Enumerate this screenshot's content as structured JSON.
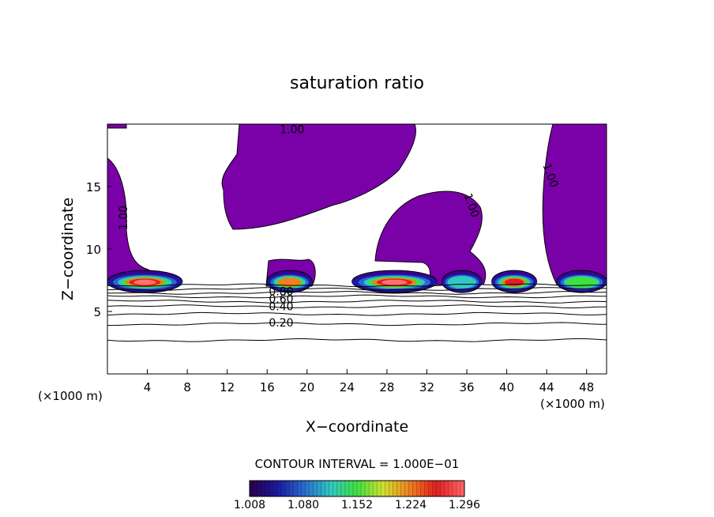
{
  "chart_data": {
    "type": "heatmap",
    "title": "saturation ratio",
    "xlabel": "X−coordinate",
    "ylabel": "Z−coordinate",
    "x_unit_left": "(×1000 m)",
    "x_unit_right": "(×1000 m)",
    "xlim": [
      0,
      50
    ],
    "ylim": [
      0,
      20
    ],
    "x_ticks": [
      4,
      8,
      12,
      16,
      20,
      24,
      28,
      32,
      36,
      40,
      44,
      48
    ],
    "y_ticks": [
      5,
      10,
      15
    ],
    "contour_interval_text": "CONTOUR INTERVAL = 1.000E−01",
    "colorbar": {
      "labels": [
        "1.008",
        "1.080",
        "1.152",
        "1.224",
        "1.296"
      ],
      "colors": [
        "#2a0050",
        "#1a1aa0",
        "#2a6ad0",
        "#30c8c0",
        "#40e040",
        "#d0e030",
        "#f08020",
        "#e02020",
        "#ff6060"
      ]
    },
    "contour_labels": [
      {
        "text": "1.00",
        "x": 18.5,
        "y": 19.6
      },
      {
        "text": "1.00",
        "x": 1.6,
        "y": 12.5
      },
      {
        "text": "1.00",
        "x": 36.5,
        "y": 13.5
      },
      {
        "text": "1.00",
        "x": 44.4,
        "y": 15.9
      },
      {
        "text": "0.80",
        "x": 17.4,
        "y": 6.6
      },
      {
        "text": "0.60",
        "x": 17.4,
        "y": 6.0
      },
      {
        "text": "0.40",
        "x": 17.4,
        "y": 5.4
      },
      {
        "text": "0.20",
        "x": 17.4,
        "y": 4.1
      }
    ],
    "background_contours": [
      {
        "value": 0.1,
        "y": 2.7
      },
      {
        "value": 0.2,
        "y": 4.0
      },
      {
        "value": 0.3,
        "y": 4.8
      },
      {
        "value": 0.4,
        "y": 5.4
      },
      {
        "value": 0.5,
        "y": 5.8
      },
      {
        "value": 0.6,
        "y": 6.2
      },
      {
        "value": 0.7,
        "y": 6.5
      },
      {
        "value": 0.8,
        "y": 6.8
      },
      {
        "value": 0.9,
        "y": 7.1
      }
    ],
    "supersaturated_regions": [
      {
        "x": [
          0,
          7.5
        ],
        "peak": 1.3
      },
      {
        "x": [
          16,
          20.5
        ],
        "peak": 1.25
      },
      {
        "x": [
          24.5,
          33
        ],
        "peak": 1.32
      },
      {
        "x": [
          33.5,
          37.5
        ],
        "peak": 1.15
      },
      {
        "x": [
          38.5,
          43
        ],
        "peak": 1.28
      },
      {
        "x": [
          45,
          50
        ],
        "peak": 1.2
      }
    ]
  }
}
